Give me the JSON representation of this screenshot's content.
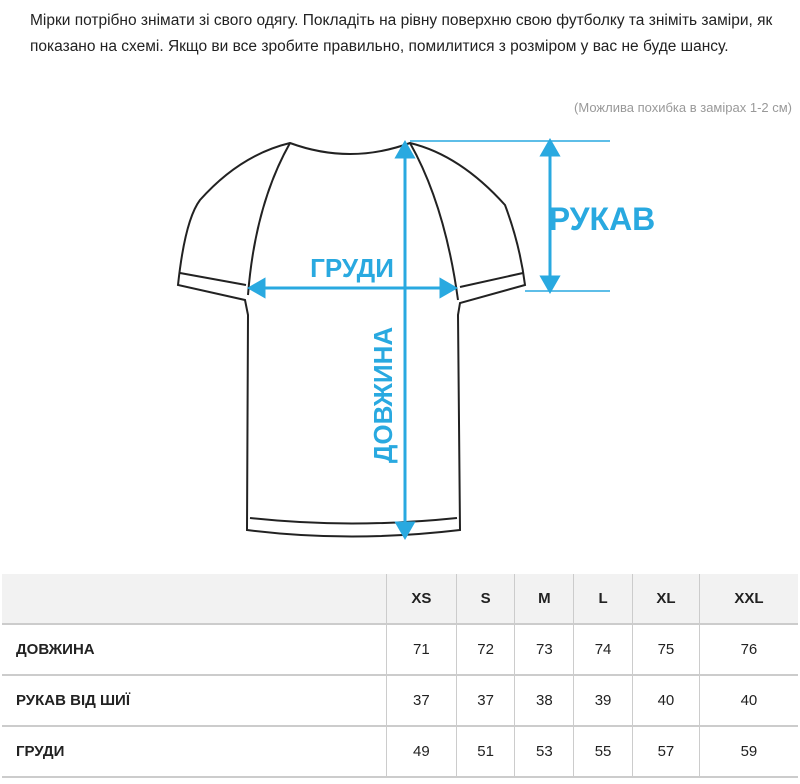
{
  "intro": "Мірки потрібно знімати зі свого одягу. Покладіть на рівну поверхню свою футболку та зніміть заміри, як показано на схемі. Якщо ви все зробите правильно, помилитися з розміром у вас не буде шансу.",
  "note": "(Можлива похибка в замірах 1-2 см)",
  "diagram": {
    "sleeve": "РУКАВ",
    "chest": "ГРУДИ",
    "length": "ДОВЖИНА",
    "accent": "#29a9e0"
  },
  "table": {
    "headers": [
      "",
      "XS",
      "S",
      "M",
      "L",
      "XL",
      "XXL"
    ],
    "rows": [
      {
        "label": "ДОВЖИНА",
        "values": [
          "71",
          "72",
          "73",
          "74",
          "75",
          "76"
        ]
      },
      {
        "label": "РУКАВ ВІД ШИЇ",
        "values": [
          "37",
          "37",
          "38",
          "39",
          "40",
          "40"
        ]
      },
      {
        "label": "ГРУДИ",
        "values": [
          "49",
          "51",
          "53",
          "55",
          "57",
          "59"
        ]
      }
    ]
  }
}
